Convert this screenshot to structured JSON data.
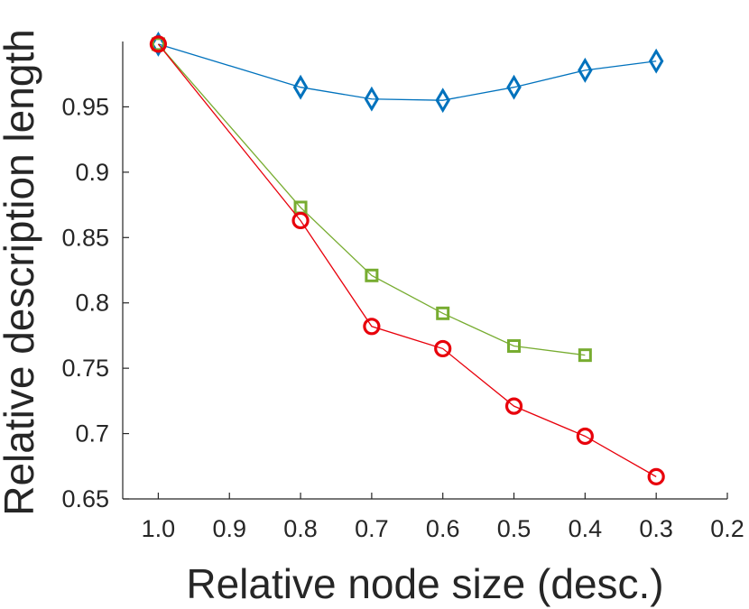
{
  "chart_data": {
    "type": "line",
    "title": "",
    "xlabel": "Relative node size (desc.)",
    "ylabel": "Relative description length",
    "xlim": [
      1.05,
      0.2
    ],
    "ylim": [
      0.65,
      1.0
    ],
    "x_reversed": true,
    "grid": false,
    "legend": "none",
    "x_ticks": [
      1.0,
      0.9,
      0.8,
      0.7,
      0.6,
      0.5,
      0.4,
      0.3,
      0.2
    ],
    "x_tick_labels": [
      "1.0",
      "0.9",
      "0.8",
      "0.7",
      "0.6",
      "0.5",
      "0.4",
      "0.3",
      "0.2"
    ],
    "y_ticks": [
      0.65,
      0.7,
      0.75,
      0.8,
      0.85,
      0.9,
      0.95
    ],
    "y_tick_labels": [
      "0.65",
      "0.7",
      "0.75",
      "0.8",
      "0.85",
      "0.9",
      "0.95"
    ],
    "series": [
      {
        "marker": "diamond",
        "color": "#0072BD",
        "x": [
          1.0,
          0.8,
          0.7,
          0.6,
          0.5,
          0.4,
          0.3
        ],
        "values": [
          0.998,
          0.965,
          0.956,
          0.955,
          0.965,
          0.978,
          0.985
        ]
      },
      {
        "marker": "square",
        "color": "#77AC30",
        "x": [
          1.0,
          0.8,
          0.7,
          0.6,
          0.5,
          0.4
        ],
        "values": [
          0.998,
          0.873,
          0.821,
          0.792,
          0.767,
          0.76
        ]
      },
      {
        "marker": "circle",
        "color": "#E8000B",
        "x": [
          1.0,
          0.8,
          0.7,
          0.6,
          0.5,
          0.4,
          0.3
        ],
        "values": [
          0.998,
          0.863,
          0.782,
          0.765,
          0.721,
          0.698,
          0.667
        ]
      }
    ]
  }
}
